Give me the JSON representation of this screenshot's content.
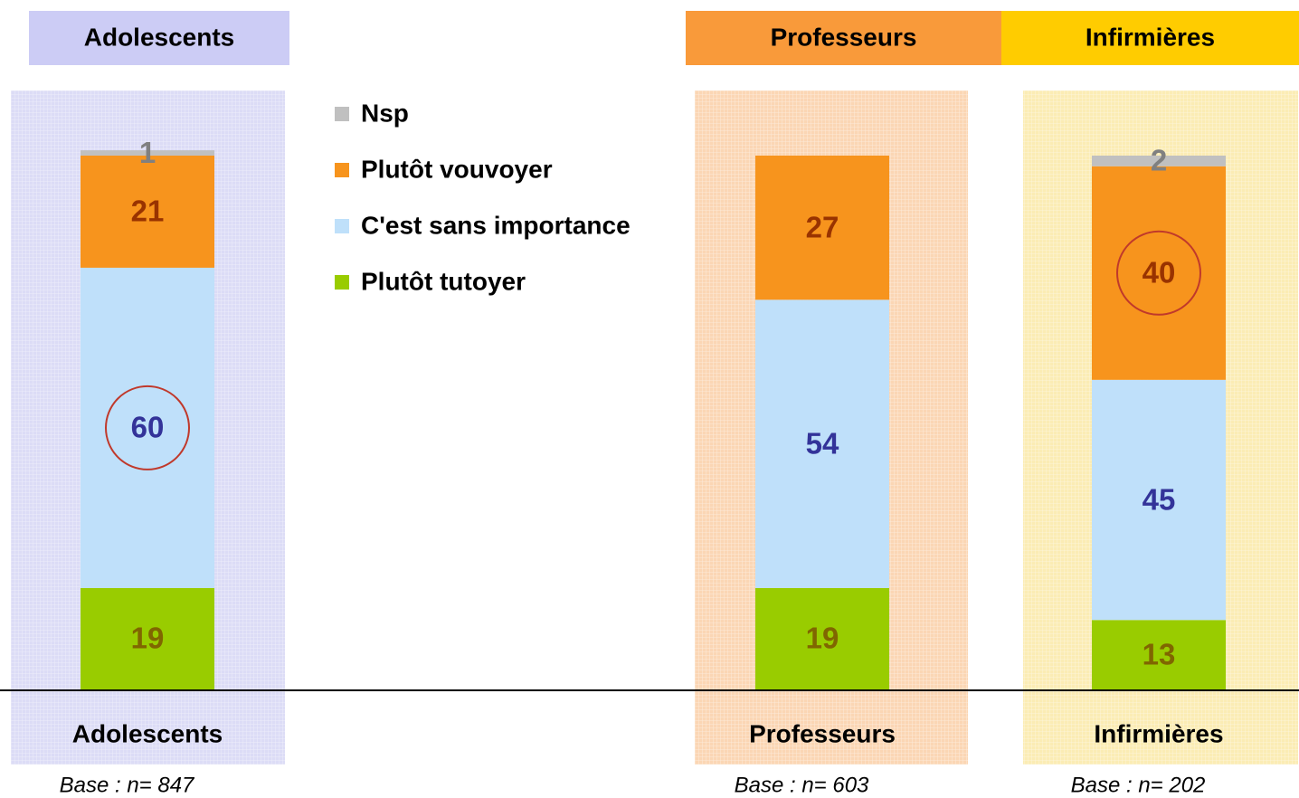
{
  "chart_data": {
    "type": "bar",
    "stacked": true,
    "group_headers": [
      "Adolescents",
      "Professeurs",
      "Infirmières"
    ],
    "header_colors": [
      "#ccccf5",
      "#f99a3a",
      "#ffcc00"
    ],
    "panel_colors": [
      "#dcdcf6",
      "#fbd6b4",
      "#fbecb4"
    ],
    "categories": [
      "Adolescents",
      "Professeurs",
      "Infirmières"
    ],
    "base_labels": [
      "Base : n= 847",
      "Base : n= 603",
      "Base : n= 202"
    ],
    "ylim": [
      0,
      100
    ],
    "series": [
      {
        "name": "Plutôt tutoyer",
        "color": "#99cc00",
        "label_color": "#806600",
        "values": [
          19,
          19,
          13
        ]
      },
      {
        "name": "C'est sans importance",
        "color": "#bfe0fa",
        "label_color": "#333399",
        "values": [
          60,
          54,
          45
        ],
        "highlight": [
          0
        ]
      },
      {
        "name": "Plutôt vouvoyer",
        "color": "#f7941d",
        "label_color": "#993300",
        "values": [
          21,
          27,
          40
        ],
        "highlight": [
          2
        ]
      },
      {
        "name": "Nsp",
        "color": "#c0c0c0",
        "label_color": "#808080",
        "values": [
          1,
          null,
          2
        ]
      }
    ],
    "highlight_color": "#c0392b"
  }
}
